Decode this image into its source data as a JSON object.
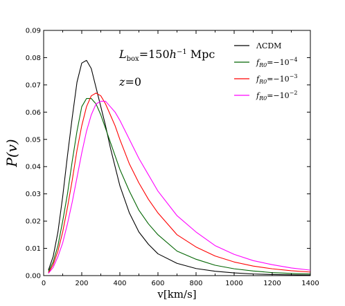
{
  "chart_data": {
    "type": "line",
    "xlabel": "v[km/s]",
    "ylabel": "P(v)",
    "xlim": [
      0,
      1400
    ],
    "ylim": [
      0,
      0.09
    ],
    "x_ticks": [
      "0",
      "200",
      "400",
      "600",
      "800",
      "1000",
      "1200",
      "1400"
    ],
    "y_ticks": [
      "0.00",
      "0.01",
      "0.02",
      "0.03",
      "0.04",
      "0.05",
      "0.06",
      "0.07",
      "0.08",
      "0.09"
    ],
    "annotations": [
      "L_box=150h^-1 Mpc",
      "z=0"
    ],
    "legend_position": "top-right",
    "grid": false,
    "series": [
      {
        "name": "ΛCDM",
        "color": "#000000",
        "x": [
          25,
          50,
          75,
          100,
          125,
          150,
          175,
          200,
          225,
          250,
          275,
          300,
          325,
          350,
          375,
          400,
          450,
          500,
          550,
          600,
          700,
          800,
          900,
          1000,
          1100,
          1200,
          1300,
          1400
        ],
        "y": [
          0.002,
          0.007,
          0.016,
          0.029,
          0.044,
          0.058,
          0.071,
          0.078,
          0.079,
          0.076,
          0.069,
          0.062,
          0.055,
          0.047,
          0.04,
          0.033,
          0.023,
          0.016,
          0.0115,
          0.008,
          0.0045,
          0.0026,
          0.0016,
          0.001,
          0.0006,
          0.0004,
          0.0003,
          0.0002
        ]
      },
      {
        "name": "f_R0=-10^-4",
        "color": "#006400",
        "x": [
          25,
          50,
          75,
          100,
          125,
          150,
          175,
          200,
          225,
          250,
          275,
          300,
          325,
          350,
          375,
          400,
          450,
          500,
          550,
          600,
          700,
          800,
          900,
          1000,
          1100,
          1200,
          1300,
          1400
        ],
        "y": [
          0.0015,
          0.005,
          0.011,
          0.02,
          0.03,
          0.042,
          0.053,
          0.062,
          0.065,
          0.065,
          0.063,
          0.059,
          0.054,
          0.049,
          0.044,
          0.039,
          0.031,
          0.024,
          0.019,
          0.015,
          0.009,
          0.006,
          0.0038,
          0.0025,
          0.0017,
          0.0011,
          0.0008,
          0.0006
        ]
      },
      {
        "name": "f_R0=-10^-3",
        "color": "#ff0000",
        "x": [
          25,
          50,
          75,
          100,
          125,
          150,
          175,
          200,
          225,
          250,
          275,
          300,
          325,
          350,
          375,
          400,
          450,
          500,
          550,
          600,
          700,
          800,
          900,
          1000,
          1100,
          1200,
          1300,
          1400
        ],
        "y": [
          0.001,
          0.004,
          0.009,
          0.016,
          0.025,
          0.035,
          0.046,
          0.055,
          0.062,
          0.066,
          0.067,
          0.066,
          0.063,
          0.059,
          0.055,
          0.05,
          0.041,
          0.034,
          0.028,
          0.023,
          0.015,
          0.0105,
          0.0072,
          0.005,
          0.0035,
          0.0025,
          0.0018,
          0.0013
        ]
      },
      {
        "name": "f_R0=-10^-2",
        "color": "#ff00ff",
        "x": [
          25,
          50,
          75,
          100,
          125,
          150,
          175,
          200,
          225,
          250,
          275,
          300,
          325,
          350,
          375,
          400,
          450,
          500,
          550,
          600,
          700,
          800,
          900,
          1000,
          1100,
          1200,
          1300,
          1400
        ],
        "y": [
          0.0008,
          0.003,
          0.007,
          0.012,
          0.019,
          0.027,
          0.036,
          0.045,
          0.053,
          0.059,
          0.063,
          0.064,
          0.064,
          0.062,
          0.06,
          0.057,
          0.05,
          0.043,
          0.037,
          0.031,
          0.022,
          0.016,
          0.011,
          0.0078,
          0.0055,
          0.004,
          0.0028,
          0.002
        ]
      }
    ]
  }
}
